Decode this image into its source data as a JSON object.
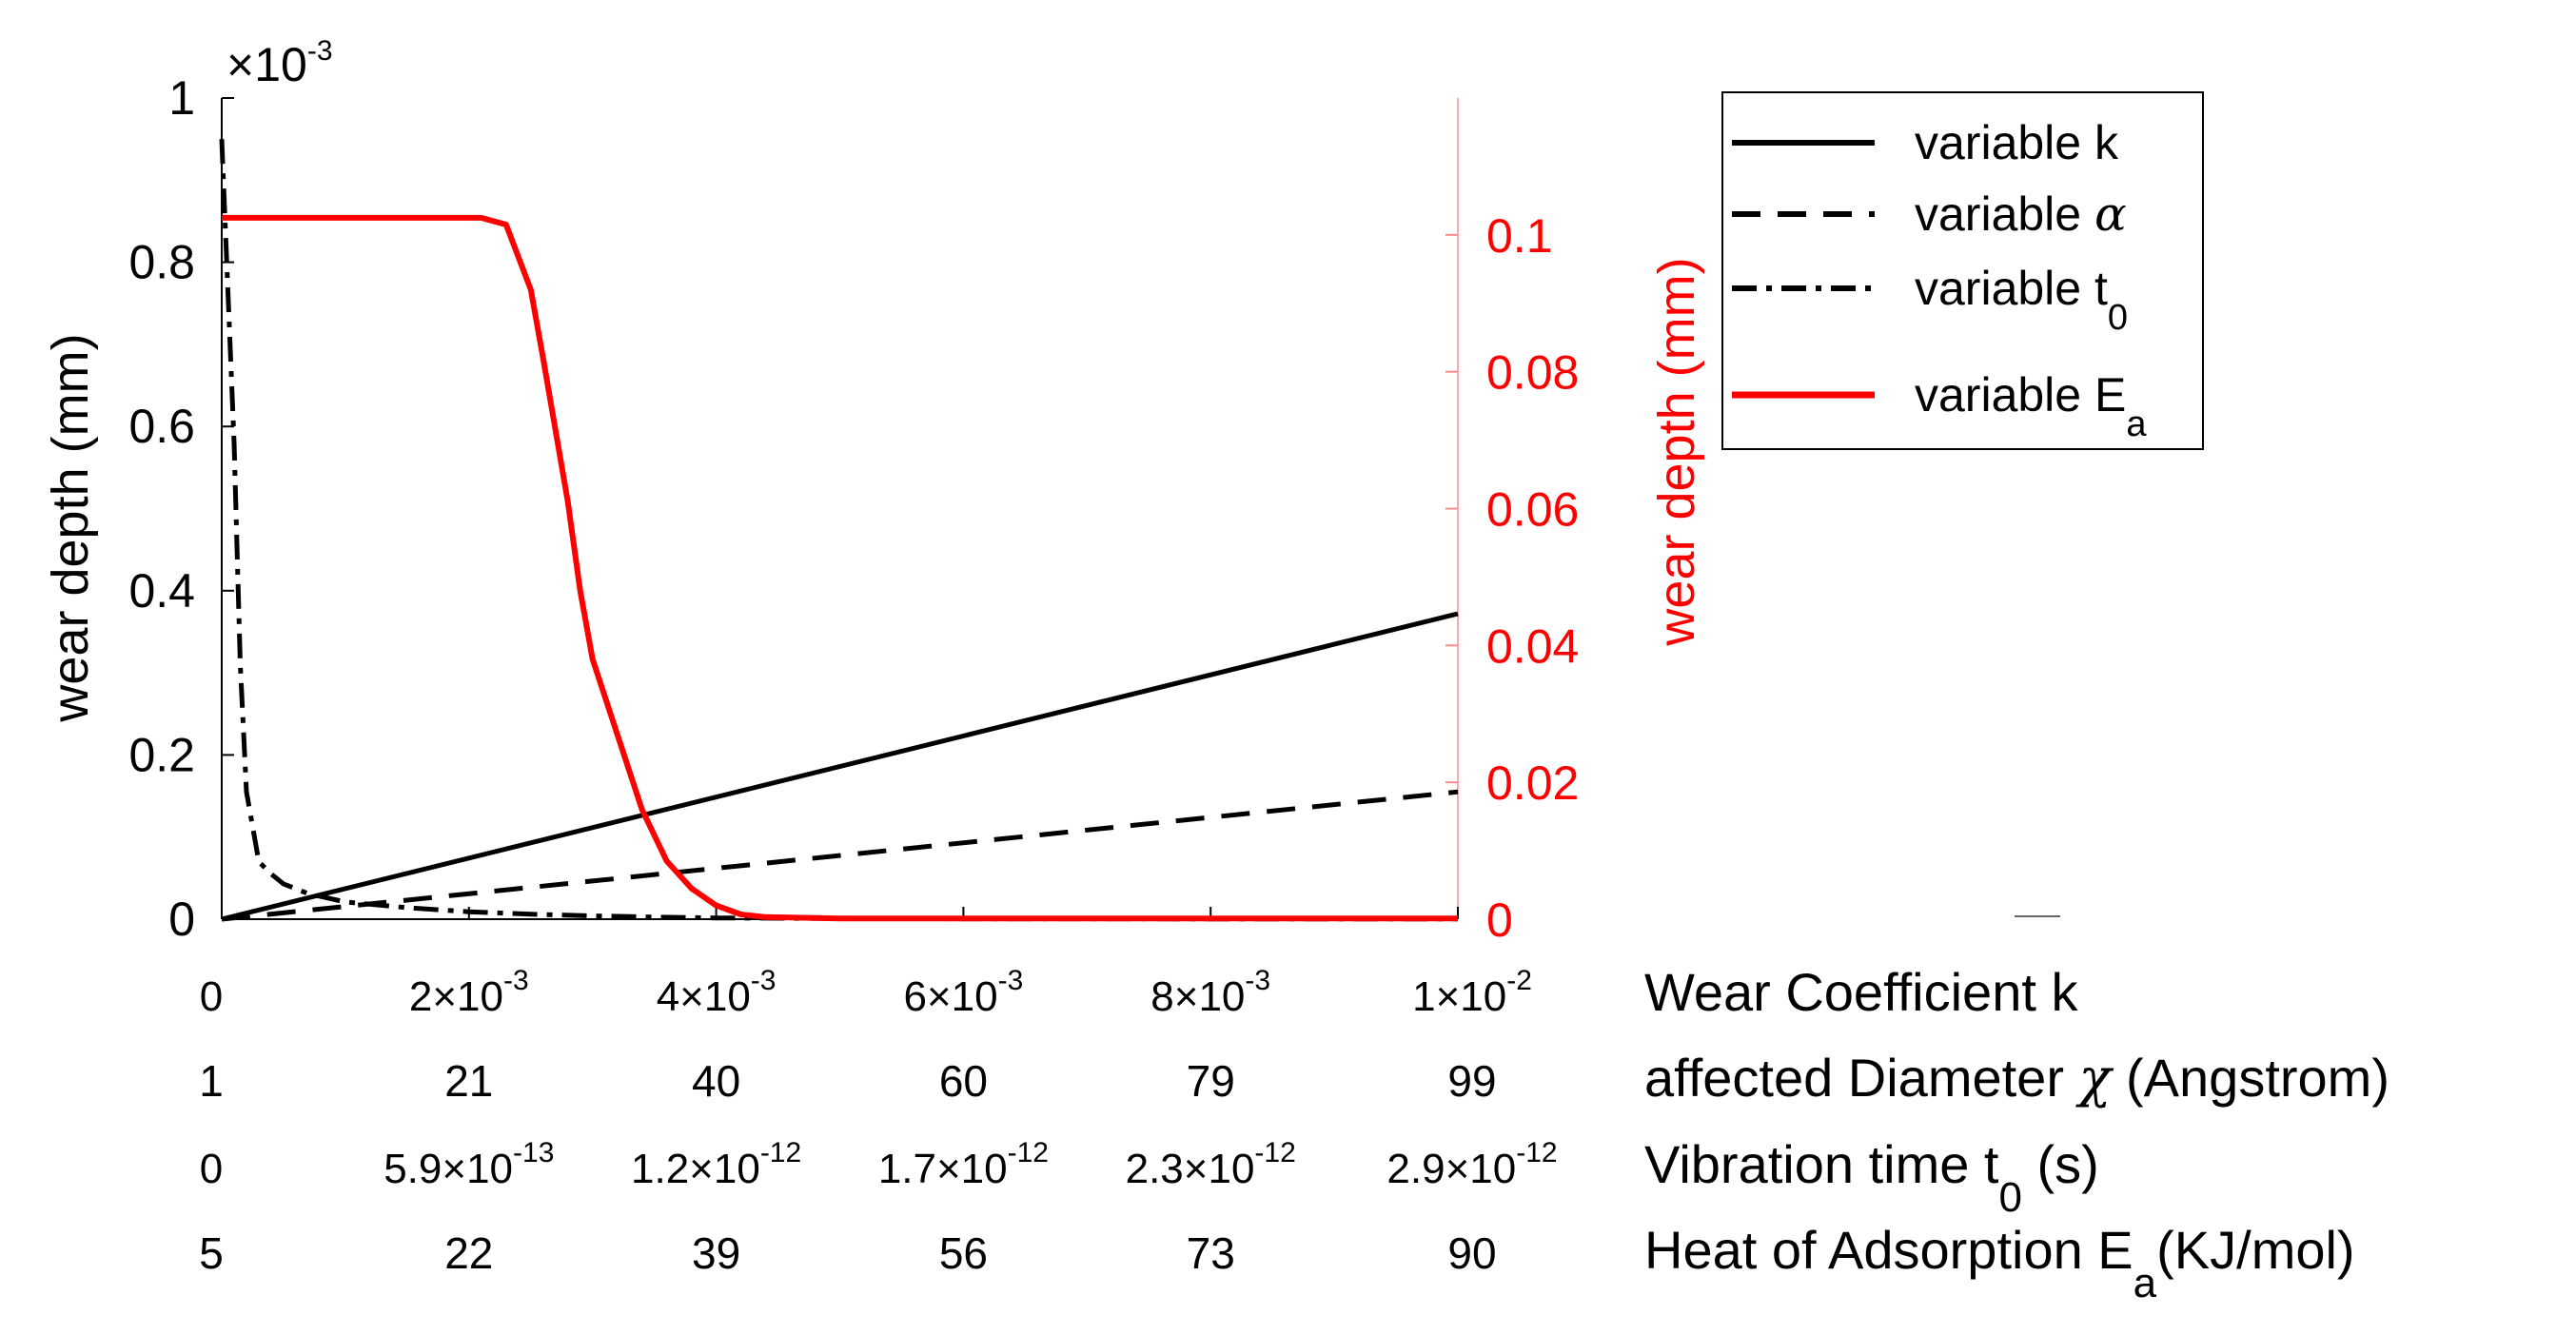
{
  "chart_data": {
    "type": "line",
    "title": "",
    "grid": false,
    "legend_position": "top-right, outside plot",
    "left_axis": {
      "label": "wear depth (mm)",
      "multiplier": "×10",
      "multiplier_exp": "-3",
      "ylim": [
        0,
        0.001
      ],
      "ticks": [
        {
          "value": 0,
          "label": "0"
        },
        {
          "value": 0.0002,
          "label": "0.2"
        },
        {
          "value": 0.0004,
          "label": "0.4"
        },
        {
          "value": 0.0006,
          "label": "0.6"
        },
        {
          "value": 0.0008,
          "label": "0.8"
        },
        {
          "value": 0.001,
          "label": "1"
        }
      ]
    },
    "right_axis": {
      "label": "wear depth (mm)",
      "color": "#ff0000",
      "ylim": [
        0,
        0.12
      ],
      "ticks": [
        {
          "value": 0,
          "label": "0"
        },
        {
          "value": 0.02,
          "label": "0.02"
        },
        {
          "value": 0.04,
          "label": "0.04"
        },
        {
          "value": 0.06,
          "label": "0.06"
        },
        {
          "value": 0.08,
          "label": "0.08"
        },
        {
          "value": 0.1,
          "label": "0.1"
        }
      ]
    },
    "x_axis": {
      "xlim": [
        0,
        0.01
      ],
      "tick_values": [
        0,
        0.002,
        0.004,
        0.006,
        0.008,
        0.01
      ]
    },
    "x_scales": [
      {
        "name": "Wear Coefficient k",
        "ticks": [
          {
            "mantissa": "0",
            "exp": ""
          },
          {
            "mantissa": "2×10",
            "exp": "-3"
          },
          {
            "mantissa": "4×10",
            "exp": "-3"
          },
          {
            "mantissa": "6×10",
            "exp": "-3"
          },
          {
            "mantissa": "8×10",
            "exp": "-3"
          },
          {
            "mantissa": "1×10",
            "exp": "-2"
          }
        ]
      },
      {
        "name_prefix": "affected Diameter ",
        "name_symbol": "χ",
        "name_suffix": " (Angstrom)",
        "ticks": [
          {
            "mantissa": "1",
            "exp": ""
          },
          {
            "mantissa": "21",
            "exp": ""
          },
          {
            "mantissa": "40",
            "exp": ""
          },
          {
            "mantissa": "60",
            "exp": ""
          },
          {
            "mantissa": "79",
            "exp": ""
          },
          {
            "mantissa": "99",
            "exp": ""
          }
        ]
      },
      {
        "name_prefix": "Vibration time t",
        "name_sub": "0",
        "name_suffix": " (s)",
        "ticks": [
          {
            "mantissa": "0",
            "exp": ""
          },
          {
            "mantissa": "5.9×10",
            "exp": "-13"
          },
          {
            "mantissa": "1.2×10",
            "exp": "-12"
          },
          {
            "mantissa": "1.7×10",
            "exp": "-12"
          },
          {
            "mantissa": "2.3×10",
            "exp": "-12"
          },
          {
            "mantissa": "2.9×10",
            "exp": "-12"
          }
        ]
      },
      {
        "name_prefix": "Heat of Adsorption E",
        "name_sub": "a",
        "name_suffix": "(KJ/mol)",
        "ticks": [
          {
            "mantissa": "5",
            "exp": ""
          },
          {
            "mantissa": "22",
            "exp": ""
          },
          {
            "mantissa": "39",
            "exp": ""
          },
          {
            "mantissa": "56",
            "exp": ""
          },
          {
            "mantissa": "73",
            "exp": ""
          },
          {
            "mantissa": "90",
            "exp": ""
          }
        ]
      }
    ],
    "series": [
      {
        "legend_prefix": "variable k",
        "legend_sub": "",
        "legend_symbol": "",
        "axis": "left",
        "color": "#000000",
        "dash": "solid",
        "x": [
          0,
          0.01
        ],
        "y": [
          0,
          0.000372
        ]
      },
      {
        "legend_prefix": "variable ",
        "legend_sub": "",
        "legend_symbol": "α",
        "axis": "left",
        "color": "#000000",
        "dash": "dashed",
        "x": [
          0,
          0.01
        ],
        "y": [
          0,
          0.000155
        ]
      },
      {
        "legend_prefix": "variable t",
        "legend_sub": "0",
        "legend_symbol": "",
        "axis": "left",
        "color": "#000000",
        "dash": "dashdot",
        "x": [
          0,
          0.0001,
          0.00015,
          0.0002,
          0.0003,
          0.0004,
          0.0005,
          0.0007,
          0.001,
          0.0015,
          0.002,
          0.0025,
          0.003,
          0.0035,
          0.004,
          0.005,
          0.006,
          0.008,
          0.01
        ],
        "y": [
          0.00095,
          0.00058,
          0.00031,
          0.000155,
          7e-05,
          5.5e-05,
          4.3e-05,
          3.1e-05,
          2.1e-05,
          1.4e-05,
          9e-06,
          6e-06,
          4e-06,
          2.5e-06,
          1.5e-06,
          8e-07,
          5e-07,
          3e-07,
          2e-07
        ]
      },
      {
        "legend_prefix": "variable E",
        "legend_sub": "a",
        "legend_symbol": "",
        "axis": "right",
        "color": "#ff0000",
        "dash": "solid",
        "x": [
          0,
          0.0021,
          0.0022,
          0.0023,
          0.0025,
          0.0026,
          0.0028,
          0.0029,
          0.003,
          0.0032,
          0.0034,
          0.0036,
          0.0038,
          0.004,
          0.0042,
          0.0044,
          0.005,
          0.007,
          0.01
        ],
        "y": [
          0.1025,
          0.1025,
          0.102,
          0.1015,
          0.092,
          0.082,
          0.061,
          0.048,
          0.038,
          0.027,
          0.016,
          0.0085,
          0.0045,
          0.002,
          0.0007,
          0.0003,
          0.0001,
          0.0001,
          0.0001
        ]
      }
    ]
  }
}
